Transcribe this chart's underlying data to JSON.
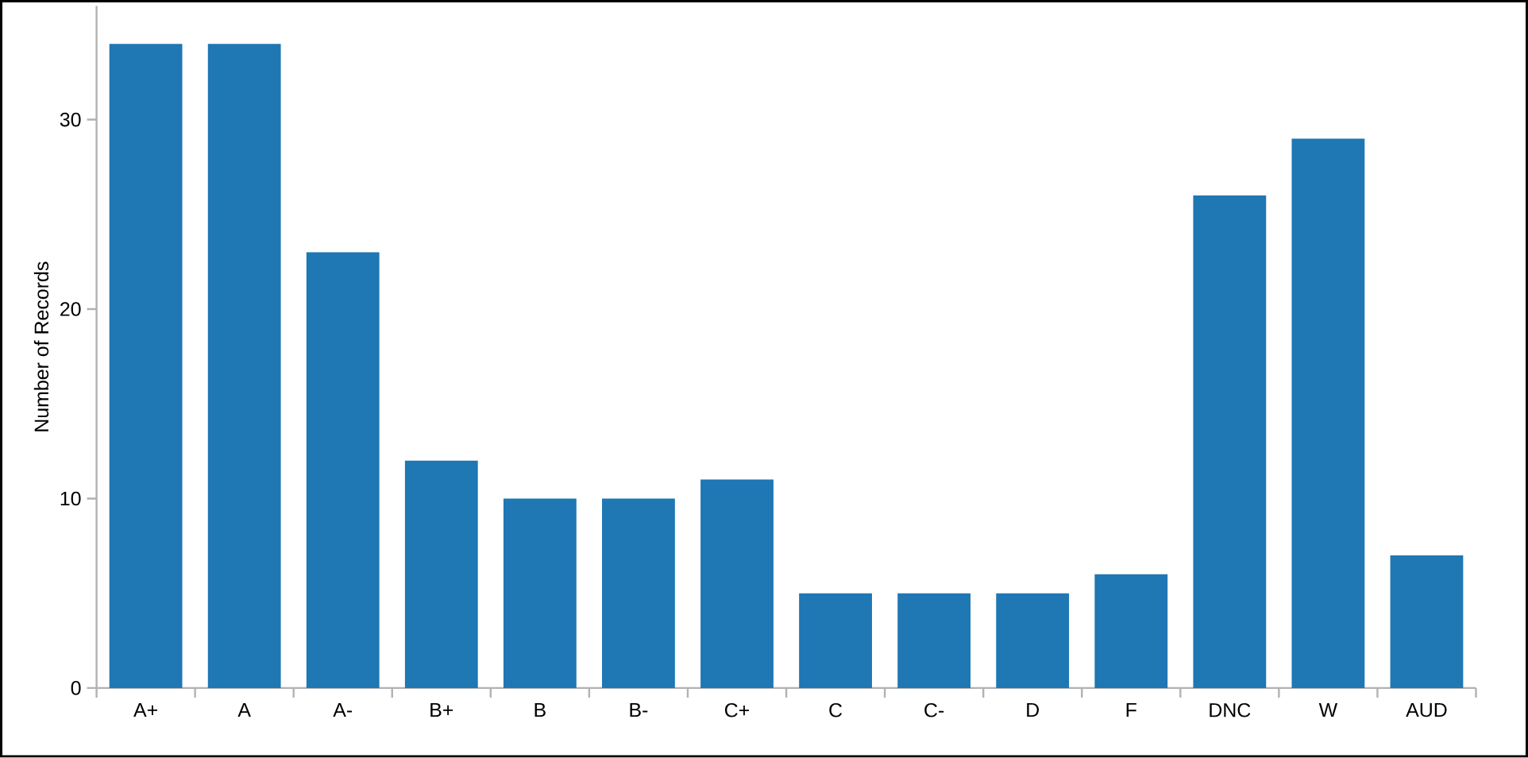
{
  "chart_data": {
    "type": "bar",
    "ylabel": "Number of Records",
    "categories": [
      "A+",
      "A",
      "A-",
      "B+",
      "B",
      "B-",
      "C+",
      "C",
      "C-",
      "D",
      "F",
      "DNC",
      "W",
      "AUD"
    ],
    "values": [
      34,
      34,
      23,
      12,
      10,
      10,
      11,
      5,
      5,
      5,
      6,
      26,
      29,
      7
    ],
    "color": "#1f77b4",
    "ylim": [
      0,
      36
    ],
    "yticks": [
      0,
      10,
      20,
      30
    ]
  }
}
